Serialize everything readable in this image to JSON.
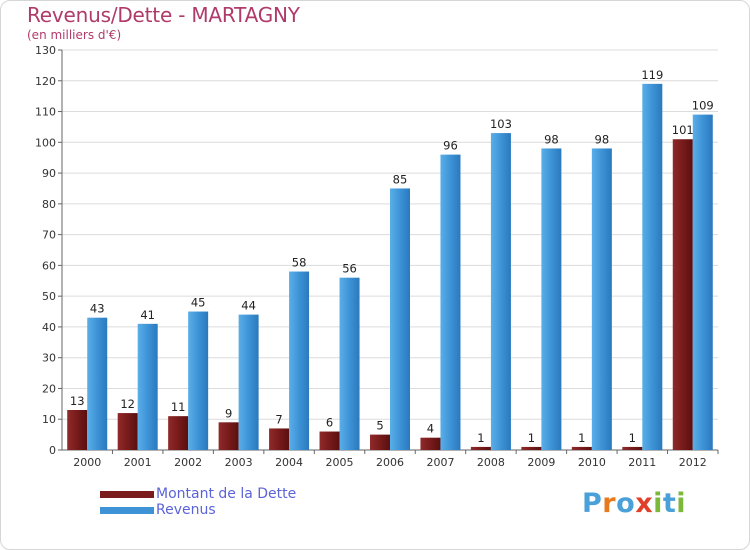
{
  "chart_data": {
    "type": "bar",
    "title": "Revenus/Dette - MARTAGNY",
    "subtitle": "(en milliers d'€)",
    "categories": [
      "2000",
      "2001",
      "2002",
      "2003",
      "2004",
      "2005",
      "2006",
      "2007",
      "2008",
      "2009",
      "2010",
      "2011",
      "2012"
    ],
    "series": [
      {
        "name": "Montant de la Dette",
        "color": "#7a1c1c",
        "values": [
          13,
          12,
          11,
          9,
          7,
          6,
          5,
          4,
          1,
          1,
          1,
          1,
          101
        ]
      },
      {
        "name": "Revenus",
        "color": "#3d93d6",
        "values": [
          43,
          41,
          45,
          44,
          58,
          56,
          85,
          96,
          103,
          98,
          98,
          119,
          109
        ]
      }
    ],
    "ylim": [
      0,
      130
    ],
    "yticks": [
      0,
      10,
      20,
      30,
      40,
      50,
      60,
      70,
      80,
      90,
      100,
      110,
      120,
      130
    ],
    "grid": true,
    "legend_position": "bottom-left"
  },
  "logo": {
    "letters": [
      "P",
      "r",
      "o",
      "x",
      "i",
      "t",
      "i"
    ],
    "colors": [
      "#4aa0d8",
      "#e87a1e",
      "#4aa0d8",
      "#e0402a",
      "#7cb83a",
      "#4aa0d8",
      "#7cb83a"
    ]
  }
}
